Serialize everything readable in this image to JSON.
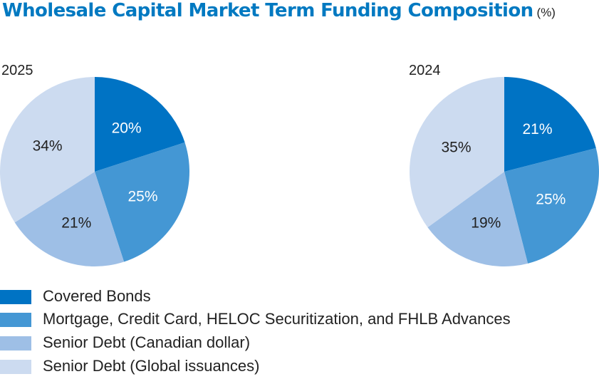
{
  "chart_data": {
    "type": "pie",
    "title": "Wholesale Capital Market Term Funding Composition",
    "unit": "(%)",
    "categories": [
      "Covered Bonds",
      "Mortgage, Credit Card, HELOC Securitization, and FHLB Advances",
      "Senior Debt (Canadian dollar)",
      "Senior Debt (Global issuances)"
    ],
    "colors": [
      "#0073c4",
      "#4497d4",
      "#9ebfe6",
      "#ccdbf0"
    ],
    "label_colors": [
      "#ffffff",
      "#ffffff",
      "#222222",
      "#222222"
    ],
    "series": [
      {
        "name": "2025",
        "values": [
          20,
          25,
          21,
          34
        ],
        "labels": [
          "20%",
          "25%",
          "21%",
          "34%"
        ]
      },
      {
        "name": "2024",
        "values": [
          21,
          25,
          19,
          35
        ],
        "labels": [
          "21%",
          "25%",
          "19%",
          "35%"
        ]
      }
    ]
  }
}
